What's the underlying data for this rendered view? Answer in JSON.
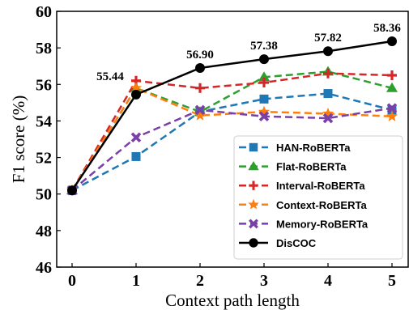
{
  "chart_data": {
    "type": "line",
    "xlabel": "Context path length",
    "ylabel": "F1 score (%)",
    "xlim": [
      0,
      5
    ],
    "ylim": [
      46,
      60
    ],
    "xticks": [
      0,
      1,
      2,
      3,
      4,
      5
    ],
    "yticks": [
      46,
      48,
      50,
      52,
      54,
      56,
      58,
      60
    ],
    "grid": false,
    "legend_position": "bottom-right",
    "x": [
      0,
      1,
      2,
      3,
      4,
      5
    ],
    "series": [
      {
        "name": "HAN-RoBERTa",
        "values": [
          50.2,
          52.05,
          54.5,
          55.2,
          55.5,
          54.6
        ],
        "color": "#1f77b4",
        "marker": "square",
        "dashed": true
      },
      {
        "name": "Flat-RoBERTa",
        "values": [
          50.2,
          55.8,
          54.5,
          56.4,
          56.7,
          55.8
        ],
        "color": "#2ca02c",
        "marker": "triangle",
        "dashed": true
      },
      {
        "name": "Interval-RoBERTa",
        "values": [
          50.2,
          56.2,
          55.8,
          56.1,
          56.6,
          56.5
        ],
        "color": "#d62728",
        "marker": "plus",
        "dashed": true
      },
      {
        "name": "Context-RoBERTa",
        "values": [
          50.2,
          55.8,
          54.3,
          54.5,
          54.4,
          54.25
        ],
        "color": "#ff7f0e",
        "marker": "star",
        "dashed": true
      },
      {
        "name": "Memory-RoBERTa",
        "values": [
          50.2,
          53.1,
          54.6,
          54.25,
          54.15,
          54.7
        ],
        "color": "#7b3fa8",
        "marker": "x",
        "dashed": true
      },
      {
        "name": "DisCOC",
        "values": [
          50.2,
          55.44,
          56.9,
          57.38,
          57.82,
          58.36
        ],
        "color": "#000000",
        "marker": "circle",
        "dashed": false
      }
    ],
    "data_labels": [
      "55.44",
      "56.90",
      "57.38",
      "57.82",
      "58.36"
    ]
  }
}
